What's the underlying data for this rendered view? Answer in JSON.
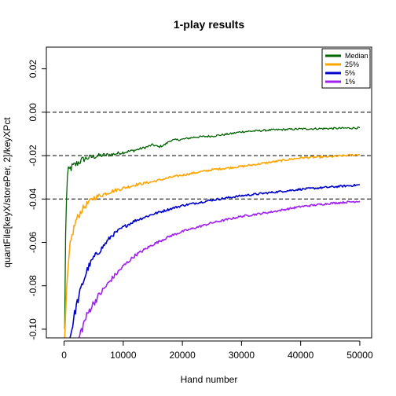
{
  "chart_data": {
    "type": "line",
    "title": "1-play results",
    "xlabel": "Hand number",
    "ylabel": "quantFile[keyX/storePer, 2]/keyXPct",
    "xlim": [
      -3000,
      52000
    ],
    "ylim": [
      -0.104,
      0.03
    ],
    "xticks": [
      0,
      10000,
      20000,
      30000,
      40000,
      50000
    ],
    "xtick_labels": [
      "0",
      "10000",
      "20000",
      "30000",
      "40000",
      "50000"
    ],
    "yticks": [
      -0.1,
      -0.08,
      -0.06,
      -0.04,
      -0.02,
      0.0,
      0.02
    ],
    "ytick_labels": [
      "-0.10",
      "-0.08",
      "-0.06",
      "-0.04",
      "-0.02",
      "0.00",
      "0.02"
    ],
    "hlines": [
      0.0,
      -0.02,
      -0.04
    ],
    "legend_position": "top-right",
    "series": [
      {
        "name": "Median",
        "color": "#006400",
        "x": [
          100,
          300,
          600,
          1000,
          1500,
          2000,
          3000,
          4000,
          5000,
          6000,
          8000,
          10000,
          12000,
          14000,
          15000,
          16000,
          17000,
          18000,
          20000,
          22000,
          25000,
          28000,
          30000,
          35000,
          40000,
          45000,
          50000
        ],
        "y": [
          -0.1,
          -0.045,
          -0.028,
          -0.026,
          -0.025,
          -0.024,
          -0.022,
          -0.021,
          -0.0205,
          -0.02,
          -0.0195,
          -0.0185,
          -0.0175,
          -0.016,
          -0.015,
          -0.016,
          -0.015,
          -0.013,
          -0.0125,
          -0.0115,
          -0.011,
          -0.01,
          -0.009,
          -0.0082,
          -0.0077,
          -0.0075,
          -0.0072
        ]
      },
      {
        "name": "25%",
        "color": "#FFA500",
        "x": [
          100,
          300,
          600,
          1000,
          1500,
          2000,
          3000,
          4000,
          5000,
          6000,
          8000,
          10000,
          12000,
          15000,
          18000,
          20000,
          25000,
          30000,
          35000,
          40000,
          45000,
          50000
        ],
        "y": [
          -0.104,
          -0.09,
          -0.075,
          -0.062,
          -0.055,
          -0.05,
          -0.045,
          -0.042,
          -0.0395,
          -0.0385,
          -0.0365,
          -0.035,
          -0.0335,
          -0.032,
          -0.03,
          -0.029,
          -0.0265,
          -0.025,
          -0.023,
          -0.021,
          -0.0205,
          -0.0195
        ]
      },
      {
        "name": "5%",
        "color": "#0000CD",
        "x": [
          1000,
          2000,
          3000,
          4000,
          5000,
          6000,
          8000,
          10000,
          12000,
          15000,
          18000,
          20000,
          25000,
          30000,
          35000,
          40000,
          45000,
          50000
        ],
        "y": [
          -0.104,
          -0.09,
          -0.08,
          -0.072,
          -0.067,
          -0.064,
          -0.057,
          -0.053,
          -0.05,
          -0.047,
          -0.0445,
          -0.043,
          -0.0405,
          -0.0385,
          -0.037,
          -0.0355,
          -0.0345,
          -0.0335
        ]
      },
      {
        "name": "1%",
        "color": "#A020F0",
        "x": [
          2500,
          3500,
          4500,
          6000,
          8000,
          10000,
          12000,
          15000,
          18000,
          20000,
          25000,
          30000,
          35000,
          40000,
          45000,
          50000
        ],
        "y": [
          -0.104,
          -0.096,
          -0.09,
          -0.084,
          -0.077,
          -0.071,
          -0.066,
          -0.061,
          -0.057,
          -0.055,
          -0.051,
          -0.048,
          -0.046,
          -0.0435,
          -0.042,
          -0.041
        ]
      }
    ]
  }
}
